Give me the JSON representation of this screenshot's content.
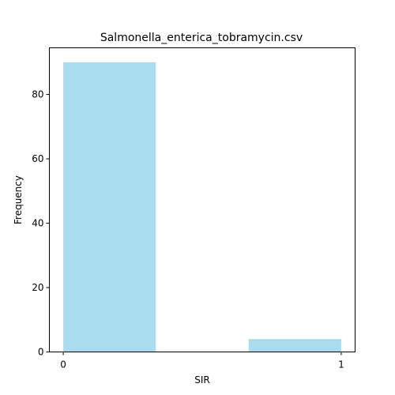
{
  "chart_data": {
    "type": "bar",
    "title": "Salmonella_enterica_tobramycin.csv",
    "xlabel": "SIR",
    "ylabel": "Frequency",
    "bins": [
      {
        "start": 0.0,
        "end": 0.333,
        "value": 90
      },
      {
        "start": 0.333,
        "end": 0.667,
        "value": 0
      },
      {
        "start": 0.667,
        "end": 1.0,
        "value": 4
      }
    ],
    "xlim": [
      -0.05,
      1.05
    ],
    "ylim": [
      0,
      94.5
    ],
    "xticks": [
      0,
      1
    ],
    "yticks": [
      0,
      20,
      40,
      60,
      80
    ],
    "bar_color": "#a8dcee",
    "grid": false
  }
}
